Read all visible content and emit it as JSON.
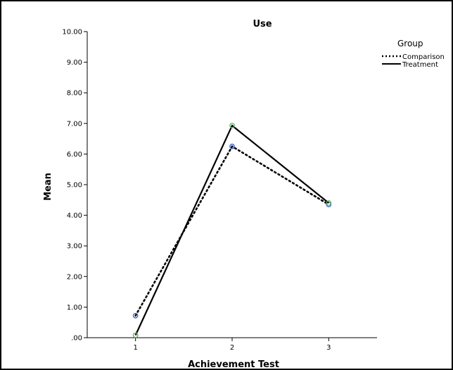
{
  "chart_data": {
    "type": "line",
    "title": "Use",
    "xlabel": "Achievement Test",
    "ylabel": "Mean",
    "x": [
      1,
      2,
      3
    ],
    "x_tick_labels": [
      "1",
      "2",
      "3"
    ],
    "ylim": [
      0,
      10
    ],
    "y_ticks": [
      0,
      1,
      2,
      3,
      4,
      5,
      6,
      7,
      8,
      9,
      10
    ],
    "y_tick_labels": [
      ".00",
      "1.00",
      "2.00",
      "3.00",
      "4.00",
      "5.00",
      "6.00",
      "7.00",
      "8.00",
      "9.00",
      "10.00"
    ],
    "grid": false,
    "legend": {
      "title": "Group",
      "placement": "right"
    },
    "series": [
      {
        "name": "Comparison",
        "values": [
          0.72,
          6.25,
          4.35
        ],
        "line_style": "dotted",
        "color": "#000000",
        "marker_color": "#3a5fcd"
      },
      {
        "name": "Treatment",
        "values": [
          0.08,
          6.93,
          4.4
        ],
        "line_style": "solid",
        "color": "#000000",
        "marker_color": "#5ab35a"
      }
    ]
  }
}
